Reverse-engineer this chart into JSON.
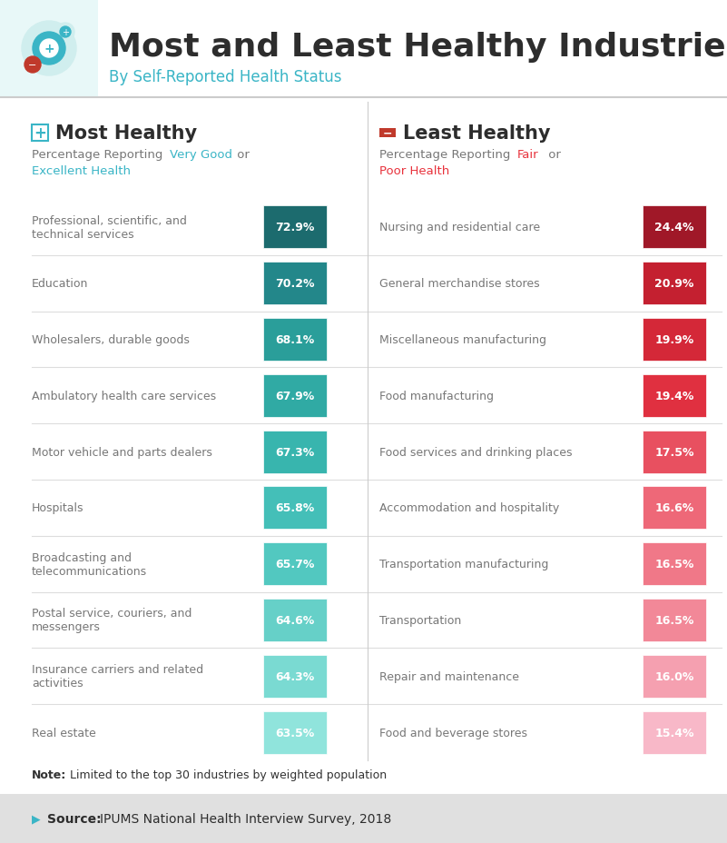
{
  "title": "Most and Least Healthy Industries",
  "subtitle": "By Self-Reported Health Status",
  "background_color": "#ffffff",
  "left_title": "Most Healthy",
  "right_title": "Least Healthy",
  "left_color": "#3ab5c6",
  "right_color_title": "#e8323c",
  "left_industries": [
    "Professional, scientific, and\ntechnical services",
    "Education",
    "Wholesalers, durable goods",
    "Ambulatory health care services",
    "Motor vehicle and parts dealers",
    "Hospitals",
    "Broadcasting and\ntelecommunications",
    "Postal service, couriers, and\nmessengers",
    "Insurance carriers and related\nactivities",
    "Real estate"
  ],
  "left_values": [
    72.9,
    70.2,
    68.1,
    67.9,
    67.3,
    65.8,
    65.7,
    64.6,
    64.3,
    63.5
  ],
  "left_bar_colors": [
    "#1c6b6e",
    "#23878a",
    "#2a9e9a",
    "#30aaa4",
    "#38b5ae",
    "#44bfb8",
    "#52c8c0",
    "#66d0c8",
    "#7adad2",
    "#90e4dc"
  ],
  "right_industries": [
    "Nursing and residential care",
    "General merchandise stores",
    "Miscellaneous manufacturing",
    "Food manufacturing",
    "Food services and drinking places",
    "Accommodation and hospitality",
    "Transportation manufacturing",
    "Transportation",
    "Repair and maintenance",
    "Food and beverage stores"
  ],
  "right_values": [
    24.4,
    20.9,
    19.9,
    19.4,
    17.5,
    16.6,
    16.5,
    16.5,
    16.0,
    15.4
  ],
  "right_bar_colors": [
    "#a01828",
    "#c42030",
    "#d42838",
    "#e03040",
    "#e85060",
    "#ee6878",
    "#f07888",
    "#f28898",
    "#f5a0b0",
    "#f8b8c8"
  ],
  "note_text": "Limited to the top 30 industries by weighted population",
  "source_label": "Source:",
  "source_text": "IPUMS National Health Interview Survey, 2018",
  "footer_bg": "#e0e0e0",
  "divider_color": "#cccccc",
  "row_divider_color": "#dddddd",
  "label_color": "#777777",
  "title_color": "#2d2d2d",
  "note_color": "#333333"
}
